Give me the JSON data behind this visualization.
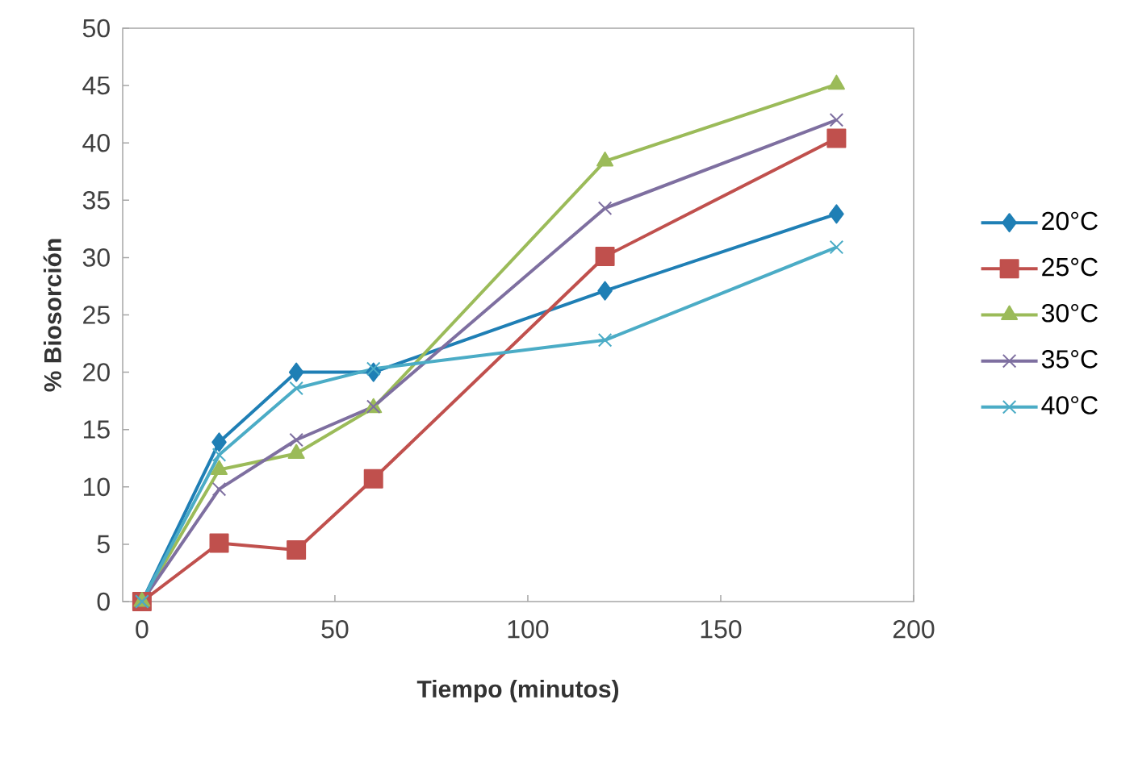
{
  "chart_data": {
    "type": "line",
    "xlabel": "Tiempo (minutos)",
    "ylabel": "% Biosorción",
    "x": [
      0,
      20,
      40,
      60,
      120,
      180
    ],
    "series": [
      {
        "name": "20°C",
        "color": "#1f7fb5",
        "marker": "diamond",
        "values": [
          0,
          13.9,
          20.0,
          20.0,
          27.1,
          33.8
        ]
      },
      {
        "name": "25°C",
        "color": "#c0504d",
        "marker": "square",
        "values": [
          0,
          5.1,
          4.5,
          10.7,
          30.1,
          40.4
        ]
      },
      {
        "name": "30°C",
        "color": "#9bbb59",
        "marker": "triangle",
        "values": [
          0,
          11.5,
          12.9,
          16.9,
          38.4,
          45.1
        ]
      },
      {
        "name": "35°C",
        "color": "#7e6fa0",
        "marker": "cross",
        "values": [
          0,
          9.8,
          14.1,
          17.0,
          34.3,
          42.0
        ]
      },
      {
        "name": "40°C",
        "color": "#4bacc6",
        "marker": "cross",
        "values": [
          0,
          12.8,
          18.6,
          20.3,
          22.8,
          30.9
        ]
      }
    ],
    "xlim": [
      -5,
      200
    ],
    "xticks": [
      0,
      50,
      100,
      150,
      200
    ],
    "ylim": [
      0,
      50
    ],
    "yticks": [
      0,
      5,
      10,
      15,
      20,
      25,
      30,
      35,
      40,
      45,
      50
    ],
    "legend": "right"
  }
}
